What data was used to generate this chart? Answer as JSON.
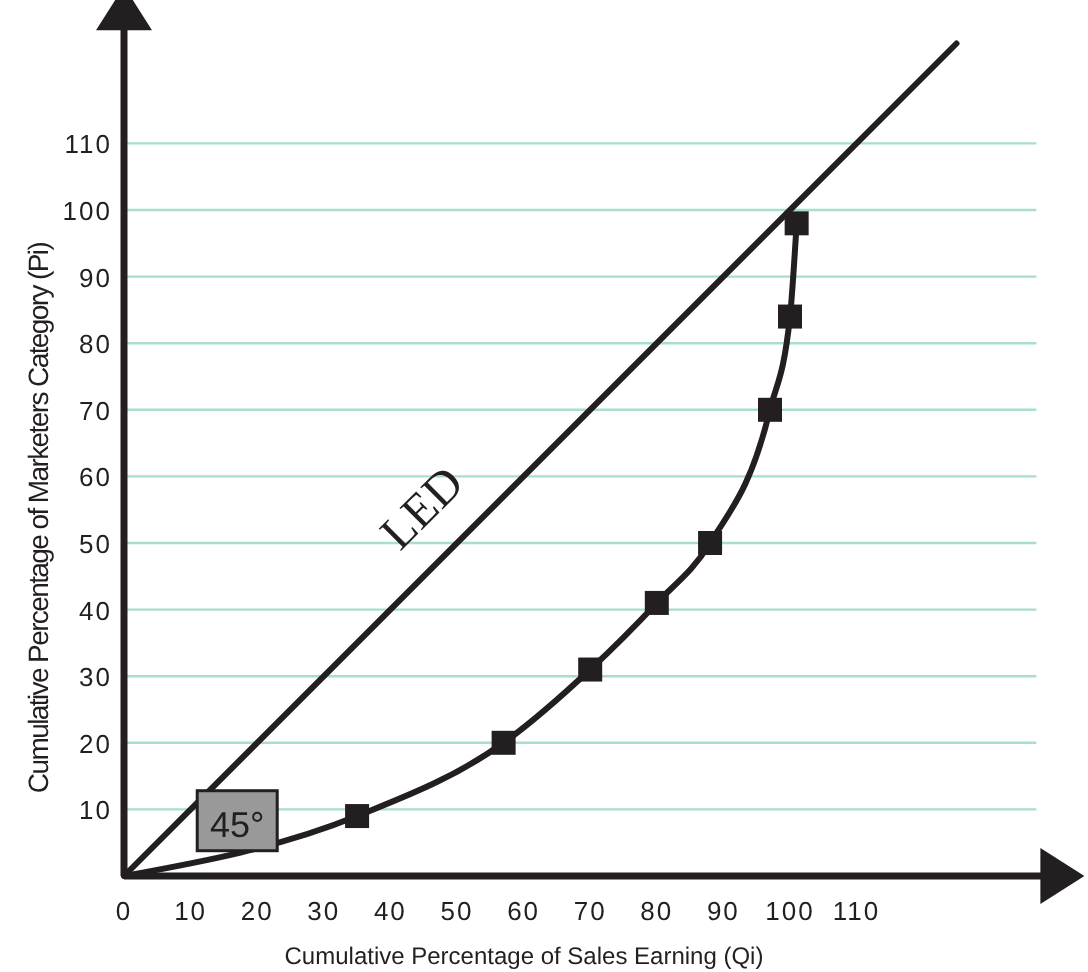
{
  "chart_data": {
    "type": "line",
    "xlabel": "Cumulative Percentage of Sales Earning (Qi)",
    "ylabel": "Cumulative Percentage of Marketers Category (Pi)",
    "xlim": [
      0,
      140
    ],
    "ylim": [
      0,
      130
    ],
    "xticks": [
      0,
      10,
      20,
      30,
      40,
      50,
      60,
      70,
      80,
      90,
      100,
      110
    ],
    "yticks": [
      10,
      20,
      30,
      40,
      50,
      60,
      70,
      80,
      90,
      100,
      110
    ],
    "grid": "y",
    "series": [
      {
        "name": "LED",
        "color": "#231f20",
        "marker": "none",
        "x": [
          0,
          125
        ],
        "values": [
          0,
          125
        ]
      },
      {
        "color": "#231f20",
        "marker": "none",
        "x": [
          0,
          35,
          57,
          70,
          80,
          88,
          97,
          100,
          101
        ],
        "values": [
          0,
          9,
          20,
          31,
          41,
          50,
          70,
          84,
          98
        ]
      },
      {
        "type": "scatter",
        "color": "#231f20",
        "marker": "square",
        "x": [
          35,
          57,
          70,
          80,
          88,
          97,
          100,
          101
        ],
        "values": [
          9,
          20,
          31,
          41,
          50,
          70,
          84,
          98
        ]
      }
    ],
    "annotations": [
      {
        "text": "45°",
        "x": 17,
        "y": 8
      }
    ]
  }
}
